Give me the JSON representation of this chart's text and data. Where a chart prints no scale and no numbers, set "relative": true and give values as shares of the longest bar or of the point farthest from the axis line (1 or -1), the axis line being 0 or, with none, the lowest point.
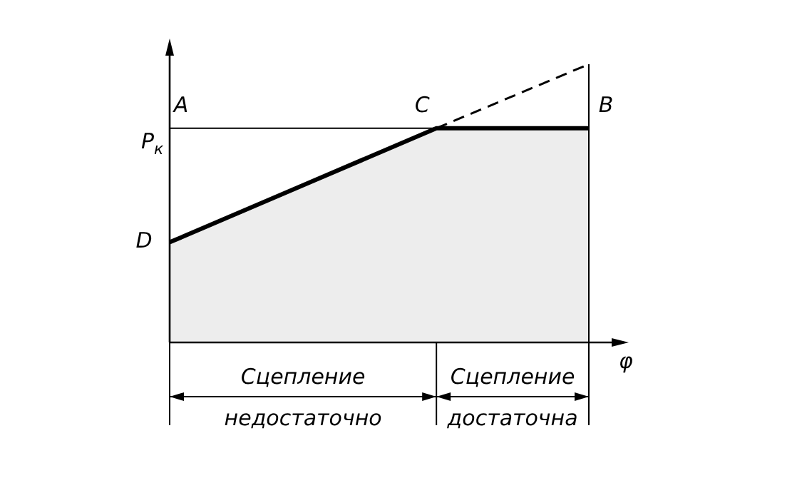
{
  "chart_data": {
    "type": "area",
    "relative": true,
    "xlabel": "φ",
    "ylabel": "P$_{к}$",
    "categories": [
      null,
      null,
      null,
      null,
      null,
      null,
      null,
      null,
      null,
      null,
      null,
      null
    ],
    "series": [
      {
        "color": "#000000",
        "values": [
          0.36,
          null,
          null,
          null,
          null,
          null,
          null,
          0.77,
          0.77,
          0.77,
          0.77,
          0.77
        ]
      },
      {
        "type": "line",
        "line_style": "dashed",
        "color": "#000000",
        "values": [
          null,
          null,
          null,
          null,
          null,
          null,
          null,
          0.77,
          null,
          null,
          null,
          1
        ]
      }
    ],
    "ref_lines": [
      {
        "axis": "y",
        "value": 0.77
      }
    ],
    "annotations": [
      "A",
      "C",
      "B",
      "D",
      "Сцепление",
      "недостаточно",
      "Сцепление",
      "достаточна"
    ],
    "legend": false
  }
}
